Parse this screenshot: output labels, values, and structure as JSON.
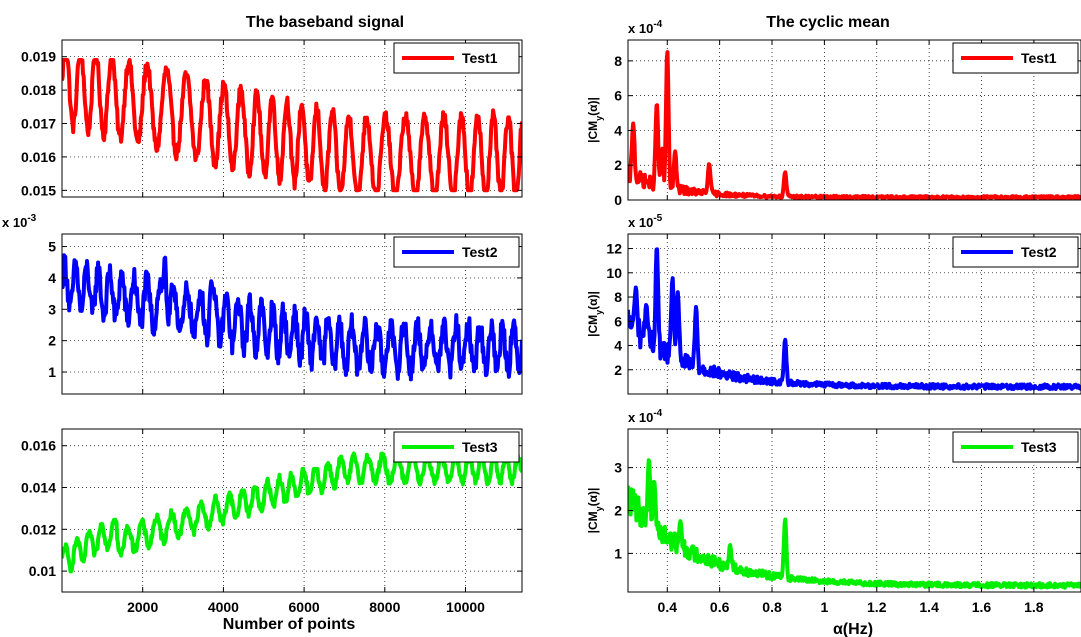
{
  "figure": {
    "left_title": "The baseband signal",
    "right_title": "The cyclic mean",
    "left_xlabel": "Number of points",
    "right_xlabel": "α(Hz)",
    "right_ylabel_main": "|CM",
    "right_ylabel_sub": "y",
    "right_ylabel_tail": "(α)|"
  },
  "chart_data": [
    {
      "type": "line",
      "panel": "left-1",
      "series": [
        {
          "name": "Test1",
          "color": "#ff0000",
          "kind": "osc",
          "start": 0.0182,
          "trend_end": 0.016,
          "amp": 0.0012,
          "period": 420,
          "noise": 0.0002,
          "clamp": [
            0.015,
            0.0189
          ]
        }
      ],
      "xlim": [
        0,
        11400
      ],
      "ylim": [
        0.0148,
        0.0195
      ],
      "yticks": [
        0.015,
        0.016,
        0.017,
        0.018,
        0.019
      ],
      "ytick_labels": [
        "0.015",
        "0.016",
        "0.017",
        "0.018",
        "0.019"
      ],
      "xticks": [
        2000,
        4000,
        6000,
        8000,
        10000
      ],
      "xtick_labels": [],
      "multiplier_exponent": "",
      "legend": "top-right",
      "grid": true
    },
    {
      "type": "line",
      "panel": "left-2",
      "series": [
        {
          "name": "Test2",
          "color": "#0000ff",
          "kind": "osc",
          "start": 3.8,
          "trend_end": 1.8,
          "amp": 0.7,
          "period": 300,
          "noise": 0.35,
          "clamp": [
            0.3,
            5.0
          ],
          "spikes": [
            [
              2550,
              4.7
            ],
            [
              3700,
              3.9
            ]
          ]
        }
      ],
      "xlim": [
        0,
        11400
      ],
      "ylim": [
        0.3,
        5.4
      ],
      "yticks": [
        1,
        2,
        3,
        4,
        5
      ],
      "ytick_labels": [
        "1",
        "2",
        "3",
        "4",
        "5"
      ],
      "xticks": [
        2000,
        4000,
        6000,
        8000,
        10000
      ],
      "xtick_labels": [],
      "multiplier_exponent": "-3",
      "legend": "top-right",
      "grid": true
    },
    {
      "type": "line",
      "panel": "left-3",
      "series": [
        {
          "name": "Test3",
          "color": "#00ee00",
          "kind": "osc",
          "start": 0.0105,
          "trend_end": 0.0149,
          "amp": 0.0006,
          "period": 330,
          "noise": 0.0002,
          "clamp": [
            0.0097,
            0.0162
          ],
          "early_dip": true
        }
      ],
      "xlim": [
        0,
        11400
      ],
      "ylim": [
        0.009,
        0.0168
      ],
      "yticks": [
        0.01,
        0.012,
        0.014,
        0.016
      ],
      "ytick_labels": [
        "0.01",
        "0.012",
        "0.014",
        "0.016"
      ],
      "xticks": [
        2000,
        4000,
        6000,
        8000,
        10000
      ],
      "xtick_labels": [
        "2000",
        "4000",
        "6000",
        "8000",
        "10000"
      ],
      "multiplier_exponent": "",
      "legend": "top-right",
      "grid": true
    },
    {
      "type": "line",
      "panel": "right-1",
      "series": [
        {
          "name": "Test1",
          "color": "#ff0000",
          "kind": "decay",
          "start": 1.5,
          "floor": 0.15,
          "tau": 0.18,
          "noise": 0.5,
          "clamp": [
            0,
            9
          ],
          "spikes": [
            [
              0.27,
              4.4
            ],
            [
              0.36,
              5.6
            ],
            [
              0.38,
              3.0
            ],
            [
              0.4,
              8.6
            ],
            [
              0.43,
              2.8
            ],
            [
              0.56,
              2.1
            ],
            [
              0.85,
              1.6
            ]
          ]
        }
      ],
      "xlim": [
        0.25,
        1.98
      ],
      "ylim": [
        0,
        9.2
      ],
      "yticks": [
        0,
        2,
        4,
        6,
        8
      ],
      "ytick_labels": [
        "0",
        "2",
        "4",
        "6",
        "8"
      ],
      "xticks": [
        0.4,
        0.6,
        0.8,
        1.0,
        1.2,
        1.4,
        1.6,
        1.8
      ],
      "xtick_labels": [],
      "multiplier_exponent": "-4",
      "legend": "top-right",
      "grid": true
    },
    {
      "type": "line",
      "panel": "right-2",
      "series": [
        {
          "name": "Test2",
          "color": "#0000ff",
          "kind": "decay",
          "start": 6.0,
          "floor": 0.6,
          "tau": 0.22,
          "noise": 1.3,
          "clamp": [
            0.2,
            13
          ],
          "spikes": [
            [
              0.28,
              8.8
            ],
            [
              0.32,
              7.4
            ],
            [
              0.36,
              12.2
            ],
            [
              0.42,
              9.6
            ],
            [
              0.44,
              8.4
            ],
            [
              0.51,
              7.2
            ],
            [
              0.85,
              4.5
            ]
          ]
        }
      ],
      "xlim": [
        0.25,
        1.98
      ],
      "ylim": [
        0,
        13.2
      ],
      "yticks": [
        2,
        4,
        6,
        8,
        10,
        12
      ],
      "ytick_labels": [
        "2",
        "4",
        "6",
        "8",
        "10",
        "12"
      ],
      "xticks": [
        0.4,
        0.6,
        0.8,
        1.0,
        1.2,
        1.4,
        1.6,
        1.8
      ],
      "xtick_labels": [],
      "multiplier_exponent": "-5",
      "legend": "top-right",
      "grid": true
    },
    {
      "type": "line",
      "panel": "right-3",
      "series": [
        {
          "name": "Test3",
          "color": "#00ee00",
          "kind": "decay",
          "start": 2.3,
          "floor": 0.25,
          "tau": 0.25,
          "noise": 0.35,
          "clamp": [
            0.1,
            3.5
          ],
          "spikes": [
            [
              0.33,
              3.2
            ],
            [
              0.35,
              2.7
            ],
            [
              0.45,
              1.75
            ],
            [
              0.64,
              1.2
            ],
            [
              0.85,
              1.8
            ]
          ]
        }
      ],
      "xlim": [
        0.25,
        1.98
      ],
      "ylim": [
        0.1,
        3.9
      ],
      "yticks": [
        1,
        2,
        3
      ],
      "ytick_labels": [
        "1",
        "2",
        "3"
      ],
      "xticks": [
        0.4,
        0.6,
        0.8,
        1.0,
        1.2,
        1.4,
        1.6,
        1.8
      ],
      "xtick_labels": [
        "0.4",
        "0.6",
        "0.8",
        "1",
        "1.2",
        "1.4",
        "1.6",
        "1.8"
      ],
      "multiplier_exponent": "-4",
      "legend": "top-right",
      "grid": true
    }
  ]
}
